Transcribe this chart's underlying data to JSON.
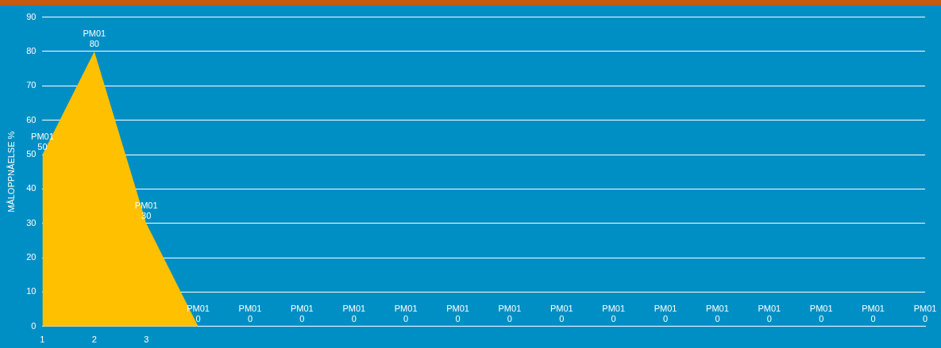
{
  "chart_data": {
    "type": "area",
    "ylabel": "MÅLOPPNÅELSE %",
    "categories": [
      "1",
      "2",
      "3",
      null,
      null,
      null,
      null,
      null,
      null,
      null,
      null,
      null,
      null,
      null,
      null,
      null,
      null,
      null
    ],
    "ylim": [
      0,
      90
    ],
    "yticks": [
      0,
      10,
      20,
      30,
      40,
      50,
      60,
      70,
      80,
      90
    ],
    "grid": "y",
    "data_labels": true,
    "series": [
      {
        "name": "PM01",
        "color": "#ffc000",
        "values": [
          50,
          80,
          30,
          0,
          0,
          0,
          0,
          0,
          0,
          0,
          0,
          0,
          0,
          0,
          0,
          0,
          0,
          0
        ]
      }
    ]
  }
}
